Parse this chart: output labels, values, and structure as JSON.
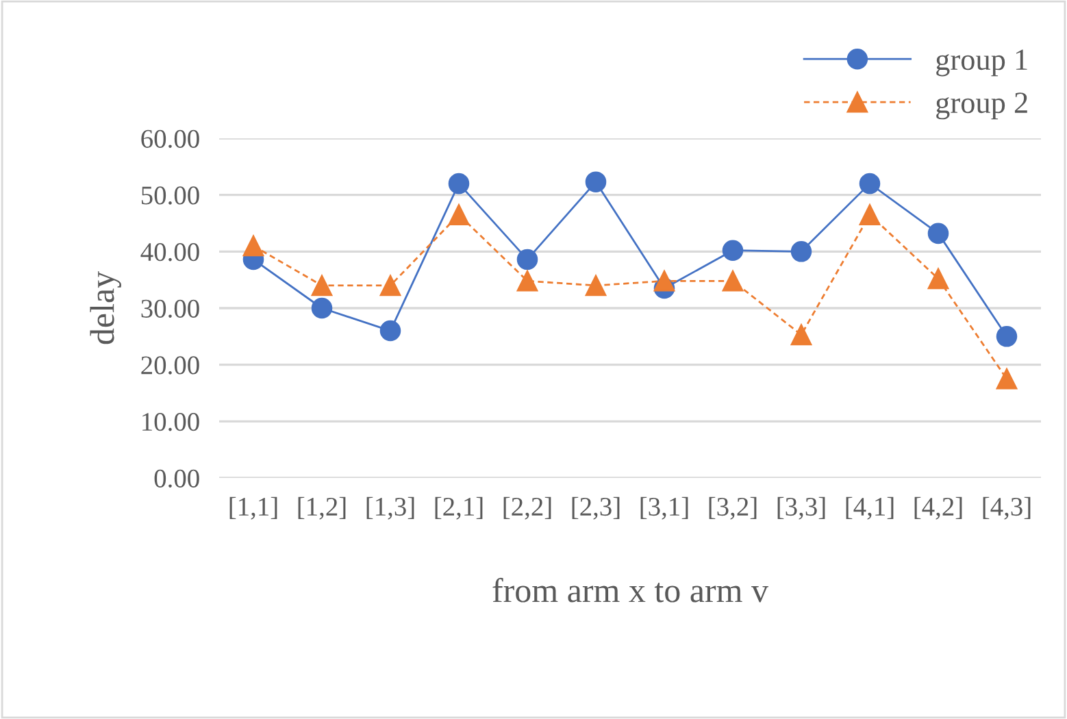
{
  "chart_data": {
    "type": "line",
    "xlabel": "from arm x to arm v",
    "ylabel": "delay",
    "categories": [
      "[1,1]",
      "[1,2]",
      "[1,3]",
      "[2,1]",
      "[2,2]",
      "[2,3]",
      "[3,1]",
      "[3,2]",
      "[3,3]",
      "[4,1]",
      "[4,2]",
      "[4,3]"
    ],
    "series": [
      {
        "name": "group 1",
        "color": "#4472c4",
        "marker": "circle",
        "line_style": "solid",
        "values": [
          38.6,
          30.0,
          26.0,
          52.0,
          38.6,
          52.3,
          33.5,
          40.2,
          40.0,
          52.0,
          43.2,
          25.0
        ]
      },
      {
        "name": "group 2",
        "color": "#ed7d31",
        "marker": "triangle",
        "line_style": "dashed",
        "values": [
          41.0,
          34.0,
          34.0,
          46.5,
          34.8,
          34.0,
          34.8,
          34.8,
          25.3,
          46.5,
          35.2,
          17.5
        ]
      }
    ],
    "ylim": [
      0,
      60
    ],
    "yticks": [
      {
        "value": 0,
        "label": "0.00"
      },
      {
        "value": 10,
        "label": "10.00"
      },
      {
        "value": 20,
        "label": "20.00"
      },
      {
        "value": 30,
        "label": "30.00"
      },
      {
        "value": 40,
        "label": "40.00"
      },
      {
        "value": 50,
        "label": "50.00"
      },
      {
        "value": 60,
        "label": "60.00"
      }
    ],
    "grid": "y",
    "legend": "top right"
  }
}
